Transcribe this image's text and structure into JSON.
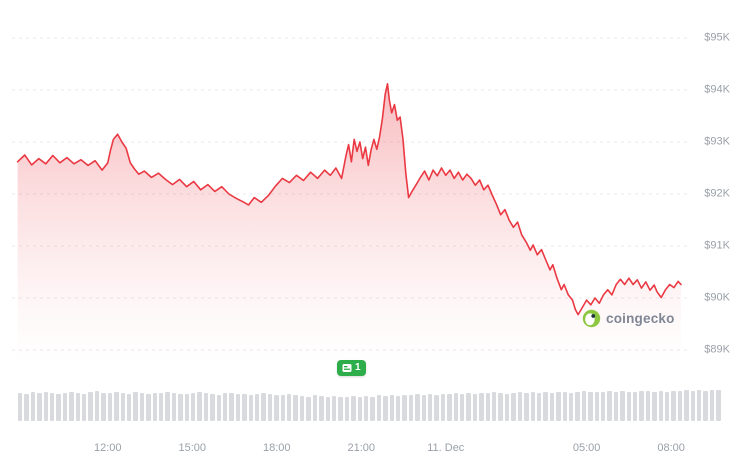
{
  "page": {
    "background": "#ffffff"
  },
  "watermark": {
    "label": "coingecko"
  },
  "annotation_badge": {
    "count": "1"
  },
  "navigator": {
    "bars": [
      0.8,
      0.78,
      0.82,
      0.79,
      0.83,
      0.8,
      0.77,
      0.81,
      0.84,
      0.8,
      0.78,
      0.82,
      0.85,
      0.81,
      0.79,
      0.83,
      0.8,
      0.78,
      0.82,
      0.8,
      0.77,
      0.81,
      0.79,
      0.83,
      0.8,
      0.78,
      0.76,
      0.8,
      0.82,
      0.79,
      0.77,
      0.75,
      0.79,
      0.81,
      0.78,
      0.76,
      0.74,
      0.78,
      0.8,
      0.77,
      0.75,
      0.73,
      0.76,
      0.74,
      0.72,
      0.7,
      0.73,
      0.71,
      0.69,
      0.72,
      0.7,
      0.68,
      0.71,
      0.69,
      0.72,
      0.7,
      0.73,
      0.71,
      0.74,
      0.72,
      0.75,
      0.73,
      0.76,
      0.74,
      0.77,
      0.75,
      0.78,
      0.76,
      0.79,
      0.77,
      0.8,
      0.78,
      0.81,
      0.79,
      0.82,
      0.8,
      0.78,
      0.81,
      0.83,
      0.8,
      0.82,
      0.8,
      0.83,
      0.81,
      0.84,
      0.82,
      0.8,
      0.83,
      0.85,
      0.82,
      0.84,
      0.82,
      0.85,
      0.83,
      0.86,
      0.84,
      0.82,
      0.85,
      0.87,
      0.84,
      0.86,
      0.84,
      0.87,
      0.85,
      0.88,
      0.86,
      0.89,
      0.87,
      0.9,
      0.88
    ]
  },
  "chart_data": {
    "type": "area",
    "title": "",
    "line_color": "#ea3943",
    "fill_color": "rgba(234,57,67,0.30)",
    "grid": "horizontal dashed",
    "x_axis": {
      "tick_labels": [
        "12:00",
        "15:00",
        "18:00",
        "21:00",
        "11. Dec",
        "05:00",
        "08:00"
      ],
      "tick_t": [
        0,
        3,
        6,
        9,
        12,
        17,
        20
      ],
      "t_unit": "hours relative to the 12:00 tick (11. Dec = midnight)",
      "t_range": [
        -3.4,
        20.6
      ]
    },
    "y_axis": {
      "tick_labels": [
        "$95K",
        "$94K",
        "$93K",
        "$92K",
        "$91K",
        "$90K",
        "$89K"
      ],
      "tick_values": [
        95,
        94,
        93,
        92,
        91,
        90,
        89
      ],
      "range": [
        88.8,
        95.4
      ],
      "side": "right"
    },
    "series": [
      {
        "name": "price",
        "points": [
          [
            -3.2,
            92.62
          ],
          [
            -2.95,
            92.75
          ],
          [
            -2.7,
            92.56
          ],
          [
            -2.45,
            92.68
          ],
          [
            -2.2,
            92.58
          ],
          [
            -1.95,
            92.74
          ],
          [
            -1.7,
            92.6
          ],
          [
            -1.45,
            92.7
          ],
          [
            -1.2,
            92.58
          ],
          [
            -0.95,
            92.66
          ],
          [
            -0.7,
            92.55
          ],
          [
            -0.45,
            92.64
          ],
          [
            -0.2,
            92.46
          ],
          [
            0.0,
            92.6
          ],
          [
            0.1,
            92.85
          ],
          [
            0.2,
            93.05
          ],
          [
            0.35,
            93.15
          ],
          [
            0.5,
            93.0
          ],
          [
            0.65,
            92.88
          ],
          [
            0.8,
            92.6
          ],
          [
            0.95,
            92.48
          ],
          [
            1.1,
            92.38
          ],
          [
            1.3,
            92.44
          ],
          [
            1.55,
            92.32
          ],
          [
            1.8,
            92.4
          ],
          [
            2.05,
            92.28
          ],
          [
            2.3,
            92.18
          ],
          [
            2.55,
            92.28
          ],
          [
            2.8,
            92.14
          ],
          [
            3.05,
            92.24
          ],
          [
            3.3,
            92.08
          ],
          [
            3.55,
            92.18
          ],
          [
            3.8,
            92.05
          ],
          [
            4.05,
            92.14
          ],
          [
            4.3,
            92.0
          ],
          [
            4.55,
            91.92
          ],
          [
            4.8,
            91.85
          ],
          [
            5.0,
            91.79
          ],
          [
            5.2,
            91.93
          ],
          [
            5.45,
            91.84
          ],
          [
            5.7,
            91.97
          ],
          [
            5.95,
            92.15
          ],
          [
            6.2,
            92.3
          ],
          [
            6.45,
            92.22
          ],
          [
            6.7,
            92.36
          ],
          [
            6.95,
            92.26
          ],
          [
            7.2,
            92.42
          ],
          [
            7.45,
            92.3
          ],
          [
            7.7,
            92.46
          ],
          [
            7.9,
            92.36
          ],
          [
            8.1,
            92.5
          ],
          [
            8.3,
            92.3
          ],
          [
            8.45,
            92.72
          ],
          [
            8.55,
            92.95
          ],
          [
            8.65,
            92.62
          ],
          [
            8.75,
            93.05
          ],
          [
            8.85,
            92.82
          ],
          [
            8.95,
            93.0
          ],
          [
            9.05,
            92.68
          ],
          [
            9.15,
            92.9
          ],
          [
            9.25,
            92.55
          ],
          [
            9.35,
            92.85
          ],
          [
            9.45,
            93.05
          ],
          [
            9.55,
            92.86
          ],
          [
            9.65,
            93.1
          ],
          [
            9.75,
            93.45
          ],
          [
            9.85,
            93.92
          ],
          [
            9.93,
            94.12
          ],
          [
            10.0,
            93.8
          ],
          [
            10.08,
            93.56
          ],
          [
            10.18,
            93.72
          ],
          [
            10.28,
            93.42
          ],
          [
            10.38,
            93.48
          ],
          [
            10.48,
            93.05
          ],
          [
            10.58,
            92.4
          ],
          [
            10.68,
            91.93
          ],
          [
            10.8,
            92.05
          ],
          [
            10.95,
            92.18
          ],
          [
            11.1,
            92.32
          ],
          [
            11.25,
            92.44
          ],
          [
            11.4,
            92.27
          ],
          [
            11.55,
            92.46
          ],
          [
            11.7,
            92.35
          ],
          [
            11.85,
            92.5
          ],
          [
            12.0,
            92.36
          ],
          [
            12.15,
            92.46
          ],
          [
            12.3,
            92.3
          ],
          [
            12.45,
            92.42
          ],
          [
            12.6,
            92.27
          ],
          [
            12.75,
            92.38
          ],
          [
            12.9,
            92.3
          ],
          [
            13.05,
            92.17
          ],
          [
            13.2,
            92.27
          ],
          [
            13.35,
            92.08
          ],
          [
            13.5,
            92.17
          ],
          [
            13.65,
            91.98
          ],
          [
            13.8,
            91.8
          ],
          [
            13.95,
            91.6
          ],
          [
            14.1,
            91.7
          ],
          [
            14.25,
            91.5
          ],
          [
            14.4,
            91.36
          ],
          [
            14.55,
            91.46
          ],
          [
            14.7,
            91.21
          ],
          [
            14.85,
            91.08
          ],
          [
            15.0,
            90.92
          ],
          [
            15.1,
            91.02
          ],
          [
            15.25,
            90.83
          ],
          [
            15.4,
            90.93
          ],
          [
            15.55,
            90.73
          ],
          [
            15.7,
            90.54
          ],
          [
            15.8,
            90.64
          ],
          [
            15.95,
            90.38
          ],
          [
            16.1,
            90.16
          ],
          [
            16.2,
            90.26
          ],
          [
            16.35,
            90.06
          ],
          [
            16.5,
            89.96
          ],
          [
            16.6,
            89.78
          ],
          [
            16.7,
            89.68
          ],
          [
            16.85,
            89.82
          ],
          [
            17.0,
            89.96
          ],
          [
            17.15,
            89.87
          ],
          [
            17.3,
            90.0
          ],
          [
            17.45,
            89.9
          ],
          [
            17.6,
            90.06
          ],
          [
            17.75,
            90.16
          ],
          [
            17.9,
            90.06
          ],
          [
            18.05,
            90.26
          ],
          [
            18.2,
            90.36
          ],
          [
            18.35,
            90.26
          ],
          [
            18.5,
            90.38
          ],
          [
            18.65,
            90.26
          ],
          [
            18.8,
            90.35
          ],
          [
            18.95,
            90.19
          ],
          [
            19.1,
            90.31
          ],
          [
            19.25,
            90.15
          ],
          [
            19.4,
            90.25
          ],
          [
            19.5,
            90.12
          ],
          [
            19.65,
            90.01
          ],
          [
            19.8,
            90.16
          ],
          [
            19.95,
            90.26
          ],
          [
            20.1,
            90.2
          ],
          [
            20.25,
            90.32
          ],
          [
            20.35,
            90.26
          ]
        ]
      }
    ]
  }
}
